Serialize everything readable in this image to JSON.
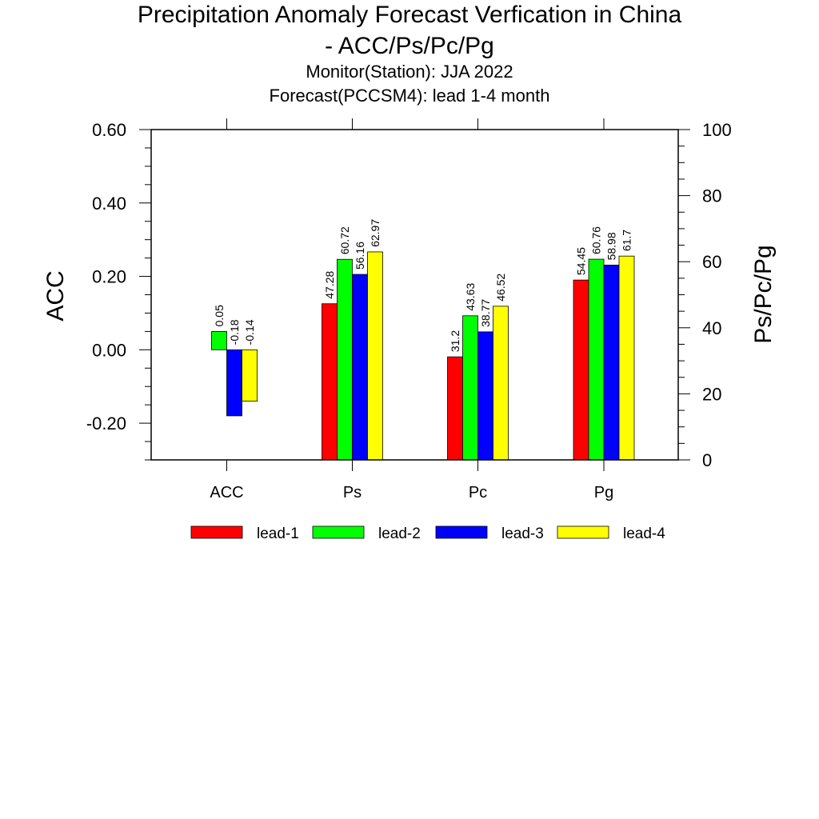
{
  "title": "Precipitation Anomaly Forecast Verfication in China",
  "title_line2": "- ACC/Ps/Pc/Pg",
  "subtitle1": "Monitor(Station): JJA 2022",
  "subtitle2": "Forecast(PCCSM4): lead 1-4 month",
  "chart_data": {
    "type": "bar",
    "categories": [
      "ACC",
      "Ps",
      "Pc",
      "Pg"
    ],
    "y_left": {
      "label": "ACC",
      "range": [
        -0.3,
        0.6
      ],
      "ticks": [
        "-0.20",
        "0.00",
        "0.20",
        "0.40",
        "0.60"
      ],
      "tick_values": [
        -0.2,
        0.0,
        0.2,
        0.4,
        0.6
      ]
    },
    "y_right": {
      "label": "Ps/Pc/Pg",
      "range": [
        0,
        100
      ],
      "ticks": [
        "0",
        "20",
        "40",
        "60",
        "80",
        "100"
      ],
      "tick_values": [
        0,
        20,
        40,
        60,
        80,
        100
      ]
    },
    "series": [
      {
        "name": "lead-1",
        "color": "#ff0000",
        "values": [
          null,
          47.28,
          31.2,
          54.45
        ],
        "labels": [
          "",
          "47.28",
          "31.2",
          "54.45"
        ]
      },
      {
        "name": "lead-2",
        "color": "#00ff00",
        "values": [
          0.05,
          60.72,
          43.63,
          60.76
        ],
        "labels": [
          "0.05",
          "60.72",
          "43.63",
          "60.76"
        ]
      },
      {
        "name": "lead-3",
        "color": "#0000ff",
        "values": [
          -0.18,
          56.16,
          38.77,
          58.98
        ],
        "labels": [
          "-0.18",
          "56.16",
          "38.77",
          "58.98"
        ]
      },
      {
        "name": "lead-4",
        "color": "#ffff00",
        "values": [
          -0.14,
          62.97,
          46.52,
          61.7
        ],
        "labels": [
          "-0.14",
          "62.97",
          "46.52",
          "61.7"
        ]
      }
    ],
    "legend_position": "bottom",
    "grid": false
  }
}
